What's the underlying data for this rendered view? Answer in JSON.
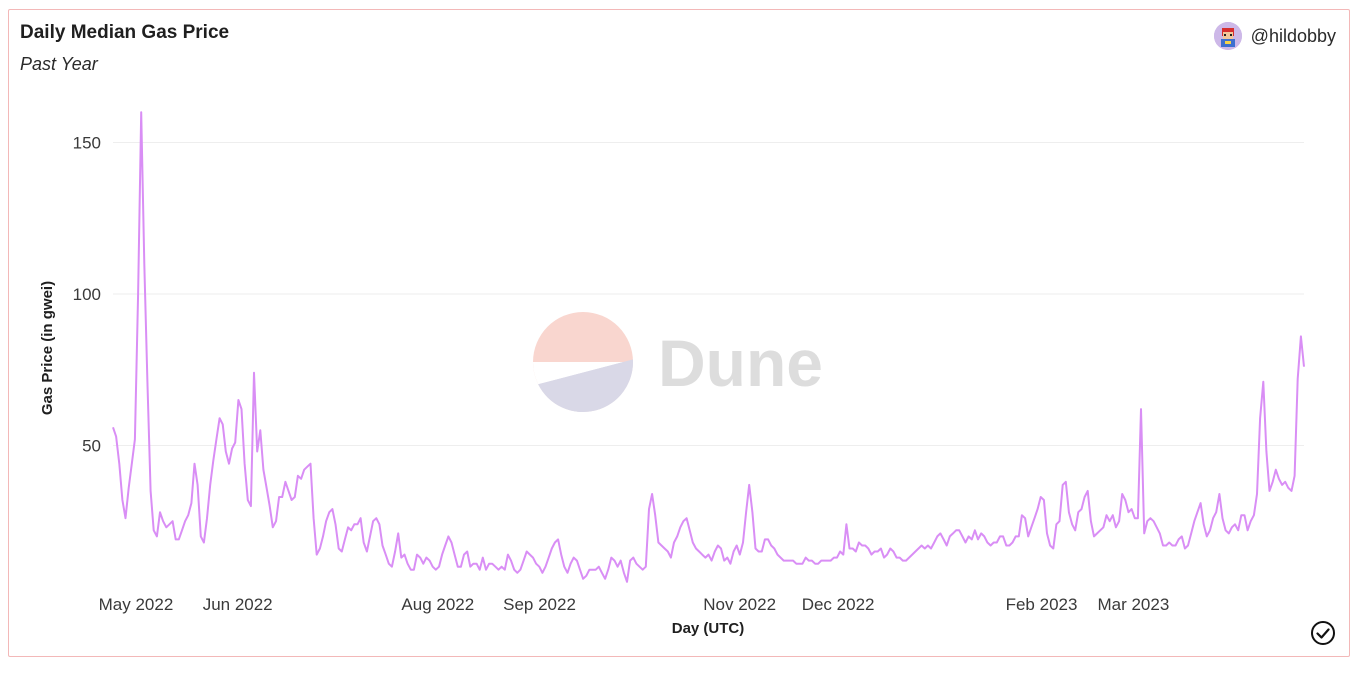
{
  "header": {
    "title": "Daily Median Gas Price",
    "subtitle": "Past Year",
    "author": "@hildobby"
  },
  "watermark": {
    "text": "Dune"
  },
  "colors": {
    "line": "#d98ef5",
    "grid": "#eeeeee",
    "border": "#f3b8b8"
  },
  "icons": {
    "avatar": "avatar-icon",
    "status": "check-circle-icon"
  },
  "chart_data": {
    "type": "line",
    "title": "Daily Median Gas Price",
    "subtitle": "Past Year",
    "xlabel": "Day (UTC)",
    "ylabel": "Gas Price (in gwei)",
    "ylim": [
      0,
      165
    ],
    "yticks": [
      50,
      100,
      150
    ],
    "xticks": [
      "May 2022",
      "Jun 2022",
      "Aug 2022",
      "Sep 2022",
      "Nov 2022",
      "Dec 2022",
      "Feb 2023",
      "Mar 2023"
    ],
    "grid": true,
    "x_start": "2022-04-24",
    "x_end": "2023-04-22",
    "series": [
      {
        "values": [
          56,
          53,
          44,
          32,
          26,
          36,
          44,
          52,
          100,
          160,
          110,
          70,
          35,
          22,
          20,
          28,
          25,
          23,
          24,
          25,
          19,
          19,
          22,
          25,
          27,
          31,
          44,
          37,
          20,
          18,
          26,
          37,
          45,
          52,
          59,
          57,
          48,
          44,
          49,
          51,
          65,
          62,
          44,
          32,
          30,
          74,
          48,
          55,
          42,
          36,
          30,
          23,
          25,
          33,
          33,
          38,
          35,
          32,
          33,
          40,
          39,
          42,
          43,
          44,
          26,
          14,
          16,
          20,
          25,
          28,
          29,
          24,
          16,
          15,
          19,
          23,
          22,
          24,
          24,
          26,
          18,
          15,
          20,
          25,
          26,
          24,
          17,
          14,
          11,
          10,
          15,
          21,
          13,
          14,
          11,
          9,
          9,
          14,
          13,
          11,
          13,
          12,
          10,
          9,
          10,
          14,
          17,
          20,
          18,
          14,
          10,
          10,
          14,
          15,
          10,
          11,
          11,
          9,
          13,
          9,
          11,
          11,
          10,
          9,
          10,
          9,
          14,
          12,
          9,
          8,
          9,
          12,
          15,
          14,
          13,
          11,
          10,
          8,
          10,
          13,
          16,
          18,
          19,
          14,
          10,
          8,
          11,
          13,
          12,
          9,
          6,
          7,
          9,
          9,
          9,
          10,
          8,
          6,
          9,
          13,
          12,
          10,
          12,
          8,
          5,
          12,
          13,
          11,
          10,
          9,
          10,
          29,
          34,
          27,
          18,
          17,
          16,
          15,
          13,
          18,
          20,
          23,
          25,
          26,
          22,
          18,
          16,
          15,
          14,
          13,
          14,
          12,
          15,
          17,
          16,
          12,
          13,
          11,
          15,
          17,
          14,
          18,
          28,
          37,
          28,
          16,
          15,
          15,
          19,
          19,
          17,
          16,
          14,
          13,
          12,
          12,
          12,
          12,
          11,
          11,
          11,
          13,
          12,
          12,
          11,
          11,
          12,
          12,
          12,
          12,
          13,
          13,
          15,
          14,
          24,
          16,
          16,
          15,
          18,
          17,
          17,
          16,
          14,
          15,
          15,
          16,
          13,
          14,
          16,
          15,
          13,
          13,
          12,
          12,
          13,
          14,
          15,
          16,
          17,
          16,
          17,
          16,
          18,
          20,
          21,
          19,
          17,
          20,
          21,
          22,
          22,
          20,
          18,
          20,
          19,
          22,
          19,
          21,
          20,
          18,
          17,
          18,
          18,
          20,
          20,
          17,
          17,
          18,
          20,
          20,
          27,
          26,
          20,
          23,
          26,
          29,
          33,
          32,
          21,
          17,
          16,
          24,
          25,
          37,
          38,
          28,
          24,
          22,
          28,
          29,
          33,
          35,
          25,
          20,
          21,
          22,
          23,
          27,
          25,
          27,
          23,
          25,
          34,
          32,
          28,
          29,
          26,
          26,
          62,
          21,
          25,
          26,
          25,
          23,
          21,
          17,
          17,
          18,
          17,
          17,
          19,
          20,
          16,
          17,
          21,
          25,
          28,
          31,
          24,
          20,
          22,
          26,
          28,
          34,
          26,
          22,
          21,
          23,
          24,
          22,
          27,
          27,
          22,
          25,
          27,
          34,
          59,
          71,
          48,
          35,
          38,
          42,
          39,
          37,
          38,
          36,
          35,
          40,
          72,
          86,
          76
        ]
      }
    ]
  }
}
